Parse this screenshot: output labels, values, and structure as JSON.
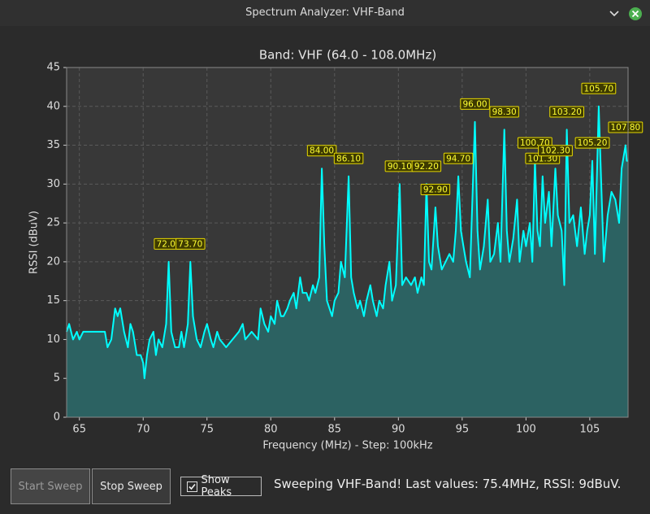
{
  "window": {
    "title": "Spectrum Analyzer: VHF-Band"
  },
  "chart_data": {
    "type": "area-line",
    "title": "Band: VHF (64.0 - 108.0MHz)",
    "x_label": "Frequency (MHz) - Step: 100kHz",
    "y_label": "RSSI (dBuV)",
    "color": "#00ffff",
    "fill_color": "#2c6262",
    "grid": true,
    "xlim": [
      64,
      108
    ],
    "xticks": [
      65,
      70,
      75,
      80,
      85,
      90,
      95,
      100,
      105
    ],
    "ylim": [
      0,
      45
    ],
    "yticks": [
      0,
      5,
      10,
      15,
      20,
      25,
      30,
      35,
      40,
      45
    ],
    "x": [
      64.0,
      64.2,
      64.5,
      64.8,
      65.0,
      65.3,
      65.5,
      66.0,
      66.5,
      67.0,
      67.2,
      67.5,
      67.8,
      68.0,
      68.2,
      68.5,
      68.8,
      69.0,
      69.2,
      69.5,
      69.8,
      70.0,
      70.1,
      70.3,
      70.5,
      70.8,
      71.0,
      71.2,
      71.5,
      71.7,
      71.8,
      72.0,
      72.2,
      72.5,
      72.8,
      73.0,
      73.2,
      73.5,
      73.7,
      73.9,
      74.2,
      74.5,
      74.8,
      75.0,
      75.3,
      75.5,
      75.8,
      76.0,
      76.5,
      77.0,
      77.5,
      77.8,
      78.0,
      78.5,
      79.0,
      79.2,
      79.5,
      79.8,
      80.0,
      80.3,
      80.5,
      80.8,
      81.0,
      81.3,
      81.5,
      81.8,
      82.0,
      82.3,
      82.5,
      82.8,
      83.0,
      83.3,
      83.5,
      83.8,
      84.0,
      84.2,
      84.4,
      84.6,
      84.8,
      85.0,
      85.3,
      85.5,
      85.8,
      86.1,
      86.3,
      86.5,
      86.8,
      87.0,
      87.3,
      87.5,
      87.8,
      88.0,
      88.3,
      88.5,
      88.8,
      89.0,
      89.3,
      89.5,
      89.8,
      90.1,
      90.3,
      90.6,
      91.0,
      91.3,
      91.5,
      91.8,
      92.0,
      92.2,
      92.4,
      92.6,
      92.9,
      93.1,
      93.4,
      93.7,
      94.0,
      94.3,
      94.5,
      94.7,
      94.9,
      95.1,
      95.3,
      95.6,
      96.0,
      96.2,
      96.4,
      96.7,
      97.0,
      97.2,
      97.5,
      97.8,
      98.0,
      98.3,
      98.5,
      98.7,
      99.0,
      99.3,
      99.5,
      99.8,
      100.0,
      100.3,
      100.5,
      100.7,
      100.9,
      101.1,
      101.3,
      101.5,
      101.8,
      102.0,
      102.3,
      102.5,
      102.8,
      103.0,
      103.2,
      103.4,
      103.7,
      104.0,
      104.3,
      104.6,
      104.8,
      105.0,
      105.2,
      105.4,
      105.7,
      105.9,
      106.1,
      106.4,
      106.7,
      107.0,
      107.3,
      107.5,
      107.6,
      107.8,
      107.9,
      108.0
    ],
    "values": [
      11,
      12,
      10,
      11,
      10,
      11,
      11,
      11,
      11,
      11,
      9,
      10,
      14,
      13,
      14,
      11,
      9,
      12,
      11,
      8,
      8,
      7,
      5,
      8,
      10,
      11,
      8,
      10,
      9,
      11,
      12,
      20,
      11,
      9,
      9,
      11,
      9,
      12,
      20,
      13,
      10,
      9,
      11,
      12,
      10,
      9,
      11,
      10,
      9,
      10,
      11,
      12,
      10,
      11,
      10,
      14,
      12,
      11,
      13,
      12,
      15,
      13,
      13,
      14,
      15,
      16,
      14,
      18,
      16,
      16,
      15,
      17,
      16,
      18,
      32,
      22,
      15,
      14,
      13,
      15,
      16,
      20,
      18,
      31,
      18,
      16,
      14,
      15,
      13,
      15,
      17,
      15,
      13,
      15,
      14,
      17,
      20,
      15,
      17,
      30,
      17,
      18,
      17,
      18,
      16,
      18,
      17,
      30,
      20,
      19,
      27,
      22,
      19,
      20,
      21,
      20,
      24,
      31,
      24,
      22,
      20,
      18,
      38,
      24,
      19,
      22,
      28,
      20,
      21,
      25,
      20,
      37,
      24,
      20,
      23,
      28,
      20,
      24,
      22,
      25,
      20,
      33,
      24,
      22,
      31,
      25,
      29,
      22,
      32,
      26,
      24,
      17,
      37,
      25,
      26,
      22,
      27,
      21,
      24,
      26,
      33,
      21,
      40,
      30,
      20,
      26,
      29,
      28,
      25,
      32,
      33,
      35,
      33,
      33
    ],
    "peaks": [
      {
        "x": 72.0,
        "label": "72.00",
        "y": 20
      },
      {
        "x": 73.7,
        "label": "73.70",
        "y": 20
      },
      {
        "x": 84.0,
        "label": "84.00",
        "y": 32
      },
      {
        "x": 86.1,
        "label": "86.10",
        "y": 31
      },
      {
        "x": 90.1,
        "label": "90.10",
        "y": 30
      },
      {
        "x": 92.2,
        "label": "92.20",
        "y": 30
      },
      {
        "x": 92.9,
        "label": "92.90",
        "y": 27
      },
      {
        "x": 94.7,
        "label": "94.70",
        "y": 31
      },
      {
        "x": 96.0,
        "label": "96.00",
        "y": 38
      },
      {
        "x": 98.3,
        "label": "98.30",
        "y": 37
      },
      {
        "x": 100.7,
        "label": "100.70",
        "y": 33
      },
      {
        "x": 101.3,
        "label": "101.30",
        "y": 31
      },
      {
        "x": 102.3,
        "label": "102.30",
        "y": 32
      },
      {
        "x": 103.2,
        "label": "103.20",
        "y": 37
      },
      {
        "x": 105.2,
        "label": "105.20",
        "y": 33
      },
      {
        "x": 105.7,
        "label": "105.70",
        "y": 40
      },
      {
        "x": 107.8,
        "label": "107.80",
        "y": 35
      }
    ]
  },
  "controls": {
    "start_button": "Start Sweep",
    "stop_button": "Stop Sweep",
    "show_peaks": "Show Peaks",
    "status": "Sweeping VHF-Band! Last values: 75.4MHz, RSSI: 9dBuV."
  }
}
